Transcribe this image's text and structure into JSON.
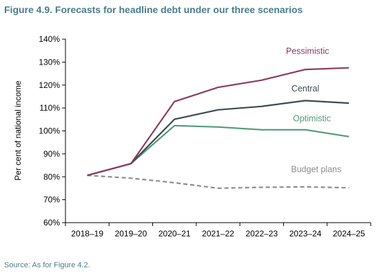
{
  "title": "Figure 4.9. Forecasts for headline debt under our three scenarios",
  "source": "Source: As for Figure 4.2.",
  "chart_data": {
    "type": "line",
    "title": "",
    "xlabel": "",
    "ylabel": "Per cent of national income",
    "categories": [
      "2018–19",
      "2019–20",
      "2020–21",
      "2021–22",
      "2022–23",
      "2023–24",
      "2024–25"
    ],
    "ylim": [
      60,
      140
    ],
    "yticks": [
      60,
      70,
      80,
      90,
      100,
      110,
      120,
      130,
      140
    ],
    "ytick_labels": [
      "60%",
      "70%",
      "80%",
      "90%",
      "100%",
      "110%",
      "120%",
      "130%",
      "140%"
    ],
    "grid": false,
    "legend": "inline labels",
    "series": [
      {
        "name": "Pessimistic",
        "color": "#8b3a5e",
        "style": "solid",
        "values": [
          null,
          85.7,
          112.8,
          119.0,
          122.1,
          126.8,
          127.5
        ]
      },
      {
        "name": "Central",
        "color": "#3a4a50",
        "style": "solid",
        "values": [
          null,
          85.7,
          105.1,
          109.2,
          110.7,
          113.2,
          112.1
        ]
      },
      {
        "name": "Optimistic",
        "color": "#4f9a7a",
        "style": "solid",
        "values": [
          80.6,
          85.7,
          102.3,
          101.7,
          100.5,
          100.5,
          97.5
        ]
      },
      {
        "name": "Budget plans",
        "color": "#8c8c8c",
        "style": "dashed",
        "values": [
          80.6,
          79.4,
          77.4,
          75.0,
          75.4,
          75.6,
          75.2
        ]
      }
    ],
    "extra_segments": [
      {
        "series": "Pessimistic",
        "from_index": 0,
        "value": 80.6
      },
      {
        "series": "Central",
        "from_index": 0,
        "value": 80.6
      }
    ]
  }
}
